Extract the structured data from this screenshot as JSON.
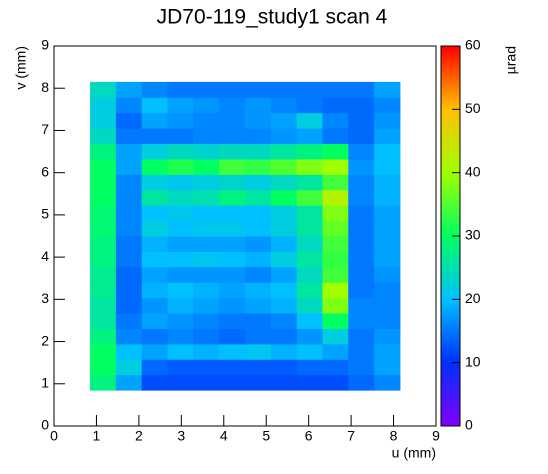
{
  "chart_data": {
    "type": "heatmap",
    "title": "JD70-119_study1 scan 4",
    "xlabel": "u (mm)",
    "ylabel": "v (mm)",
    "zlabel": "µrad",
    "xlim": [
      0,
      9
    ],
    "ylim": [
      0,
      9
    ],
    "zlim": [
      0,
      60
    ],
    "xticks": [
      0,
      1,
      2,
      3,
      4,
      5,
      6,
      7,
      8,
      9
    ],
    "yticks": [
      0,
      1,
      2,
      3,
      4,
      5,
      6,
      7,
      8,
      9
    ],
    "zticks": [
      0,
      10,
      20,
      30,
      40,
      50,
      60
    ],
    "colorscale": [
      "#8000ff",
      "#0030ff",
      "#00c0ff",
      "#00ff60",
      "#a0ff00",
      "#ffc000",
      "#ff0000"
    ],
    "xbins": [
      0.85,
      1.458,
      2.067,
      2.675,
      3.283,
      3.892,
      4.5,
      5.108,
      5.717,
      6.325,
      6.933,
      7.542,
      8.15
    ],
    "ybins": [
      0.85,
      1.215,
      1.58,
      1.945,
      2.31,
      2.675,
      3.04,
      3.405,
      3.77,
      4.135,
      4.5,
      4.865,
      5.23,
      5.595,
      5.96,
      6.325,
      6.69,
      7.055,
      7.42,
      7.785,
      8.15
    ],
    "z": [
      [
        28,
        18,
        12,
        12,
        12,
        12,
        12,
        12,
        12,
        12,
        14,
        16
      ],
      [
        30,
        22,
        14,
        13,
        13,
        13,
        13,
        13,
        14,
        14,
        15,
        18
      ],
      [
        30,
        20,
        18,
        20,
        19,
        20,
        21,
        19,
        20,
        18,
        15,
        18
      ],
      [
        28,
        16,
        15,
        16,
        15,
        14,
        15,
        15,
        17,
        22,
        15,
        17
      ],
      [
        26,
        15,
        18,
        17,
        16,
        15,
        15,
        16,
        20,
        30,
        16,
        16
      ],
      [
        26,
        14,
        17,
        19,
        18,
        17,
        18,
        19,
        24,
        38,
        16,
        16
      ],
      [
        27,
        14,
        19,
        20,
        19,
        18,
        19,
        20,
        26,
        40,
        15,
        16
      ],
      [
        27,
        14,
        18,
        17,
        17,
        17,
        16,
        18,
        24,
        34,
        15,
        17
      ],
      [
        28,
        15,
        20,
        20,
        21,
        20,
        19,
        22,
        26,
        33,
        15,
        18
      ],
      [
        28,
        15,
        19,
        18,
        18,
        18,
        17,
        19,
        24,
        34,
        15,
        18
      ],
      [
        29,
        16,
        22,
        20,
        21,
        21,
        20,
        22,
        26,
        36,
        15,
        18
      ],
      [
        29,
        16,
        20,
        21,
        20,
        20,
        20,
        22,
        26,
        38,
        15,
        18
      ],
      [
        30,
        16,
        26,
        24,
        25,
        28,
        26,
        30,
        34,
        42,
        16,
        19
      ],
      [
        30,
        16,
        22,
        21,
        22,
        23,
        22,
        24,
        26,
        34,
        16,
        19
      ],
      [
        30,
        18,
        30,
        32,
        30,
        34,
        33,
        35,
        38,
        40,
        17,
        20
      ],
      [
        28,
        18,
        22,
        24,
        23,
        24,
        24,
        26,
        28,
        30,
        16,
        20
      ],
      [
        24,
        15,
        15,
        15,
        16,
        16,
        16,
        17,
        18,
        15,
        14,
        18
      ],
      [
        22,
        14,
        18,
        17,
        16,
        16,
        17,
        18,
        22,
        16,
        14,
        17
      ],
      [
        22,
        16,
        20,
        18,
        17,
        16,
        17,
        16,
        15,
        14,
        14,
        16
      ],
      [
        24,
        18,
        16,
        15,
        15,
        15,
        15,
        15,
        15,
        15,
        15,
        18
      ]
    ]
  }
}
